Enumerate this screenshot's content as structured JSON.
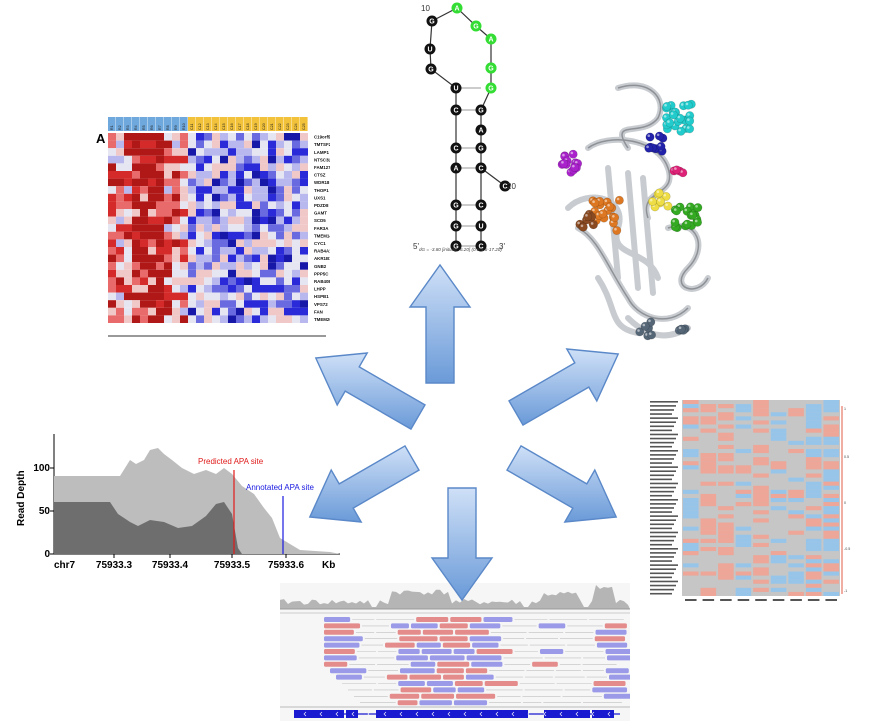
{
  "heatmap": {
    "panel_label": "A",
    "columns": [
      "R1",
      "R2",
      "R3",
      "R4",
      "R5",
      "R6",
      "R7",
      "R8",
      "R9",
      "R10",
      "C11",
      "C12",
      "C13",
      "C14",
      "C15",
      "C16",
      "C17",
      "C18",
      "C19",
      "C20",
      "C21",
      "C22",
      "C23",
      "C24",
      "C25"
    ],
    "genes": [
      "C19orf53",
      "TMTSF2",
      "LAMP1",
      "NTSC3L",
      "FAM127B",
      "CTSZ",
      "WDR18",
      "THOP1",
      "UXS1",
      "PDZD8",
      "GAMT",
      "SCD5",
      "FAR3A",
      "TMEM141",
      "CYC1",
      "RAB4A1",
      "AKR1B1",
      "GNB2",
      "PPP5C",
      "RAB40B",
      "LHPP",
      "HSPB1",
      "VPS72",
      "FAN",
      "TMEM205"
    ],
    "colors": {
      "high": "#d42a2a",
      "mid": "#f0c8c8",
      "low": "#2a2ad8",
      "header_a": "#6ea8dc",
      "header_b": "#f2c23a"
    }
  },
  "rna": {
    "top_number": "10",
    "side_number": "20",
    "left_strand": [
      "G",
      "U",
      "G",
      "U",
      "C",
      "C",
      "A",
      "G",
      "G",
      "G"
    ],
    "right_strand": [
      "A",
      "G",
      "G",
      "A",
      "G",
      "C",
      "C",
      "U",
      "C",
      "C"
    ],
    "loop": [
      "A",
      "G",
      "A",
      "G"
    ],
    "end_5": "5'",
    "end_3": "3'",
    "energy_caption": "dG = -3.80 [initially -6.20] (0.8-4.6-17.20) ",
    "colors": {
      "base": "#111111",
      "loop_base": "#33dd33"
    }
  },
  "protein": {
    "colors": {
      "ribbon": "#c8ccd0",
      "cyan": "#22cccc",
      "purple": "#aa22cc",
      "blue": "#2222aa",
      "orange": "#dd7722",
      "green": "#33aa22",
      "yellow": "#eedd44",
      "brown": "#8a4a22",
      "slate": "#556677",
      "pink": "#dd2277"
    }
  },
  "coverage": {
    "ylabel": "Read Depth",
    "y_ticks": [
      "100",
      "50",
      "0"
    ],
    "x_ticks": [
      "75933.3",
      "75933.4",
      "75933.5",
      "75933.6"
    ],
    "chrom": "chr7",
    "unit": "Kb",
    "predicted_label": "Predicted APA site",
    "annotated_label": "Annotated APA site",
    "colors": {
      "light": "#bdbdbd",
      "dark": "#6e6e6e",
      "predicted": "#e01a1a",
      "annotated": "#1a1ae0"
    }
  },
  "sequence_heatmap": {
    "side_ticks": [
      "1",
      "0.5",
      "0",
      "-0.5",
      "-1"
    ],
    "colors": {
      "pink": "#f3a08e",
      "blue": "#8ec4f0",
      "gray": "#c6c6c6"
    }
  },
  "reads": {
    "colors": {
      "red": "#e48c8c",
      "blue": "#9a9ae8",
      "coverage": "#b5b5b5",
      "gene": "#1a1ad0"
    }
  },
  "arrows": {
    "colors": {
      "fill_top": "#cfe0f7",
      "fill_bottom": "#6a9ad8",
      "stroke": "#5a88c8"
    }
  }
}
